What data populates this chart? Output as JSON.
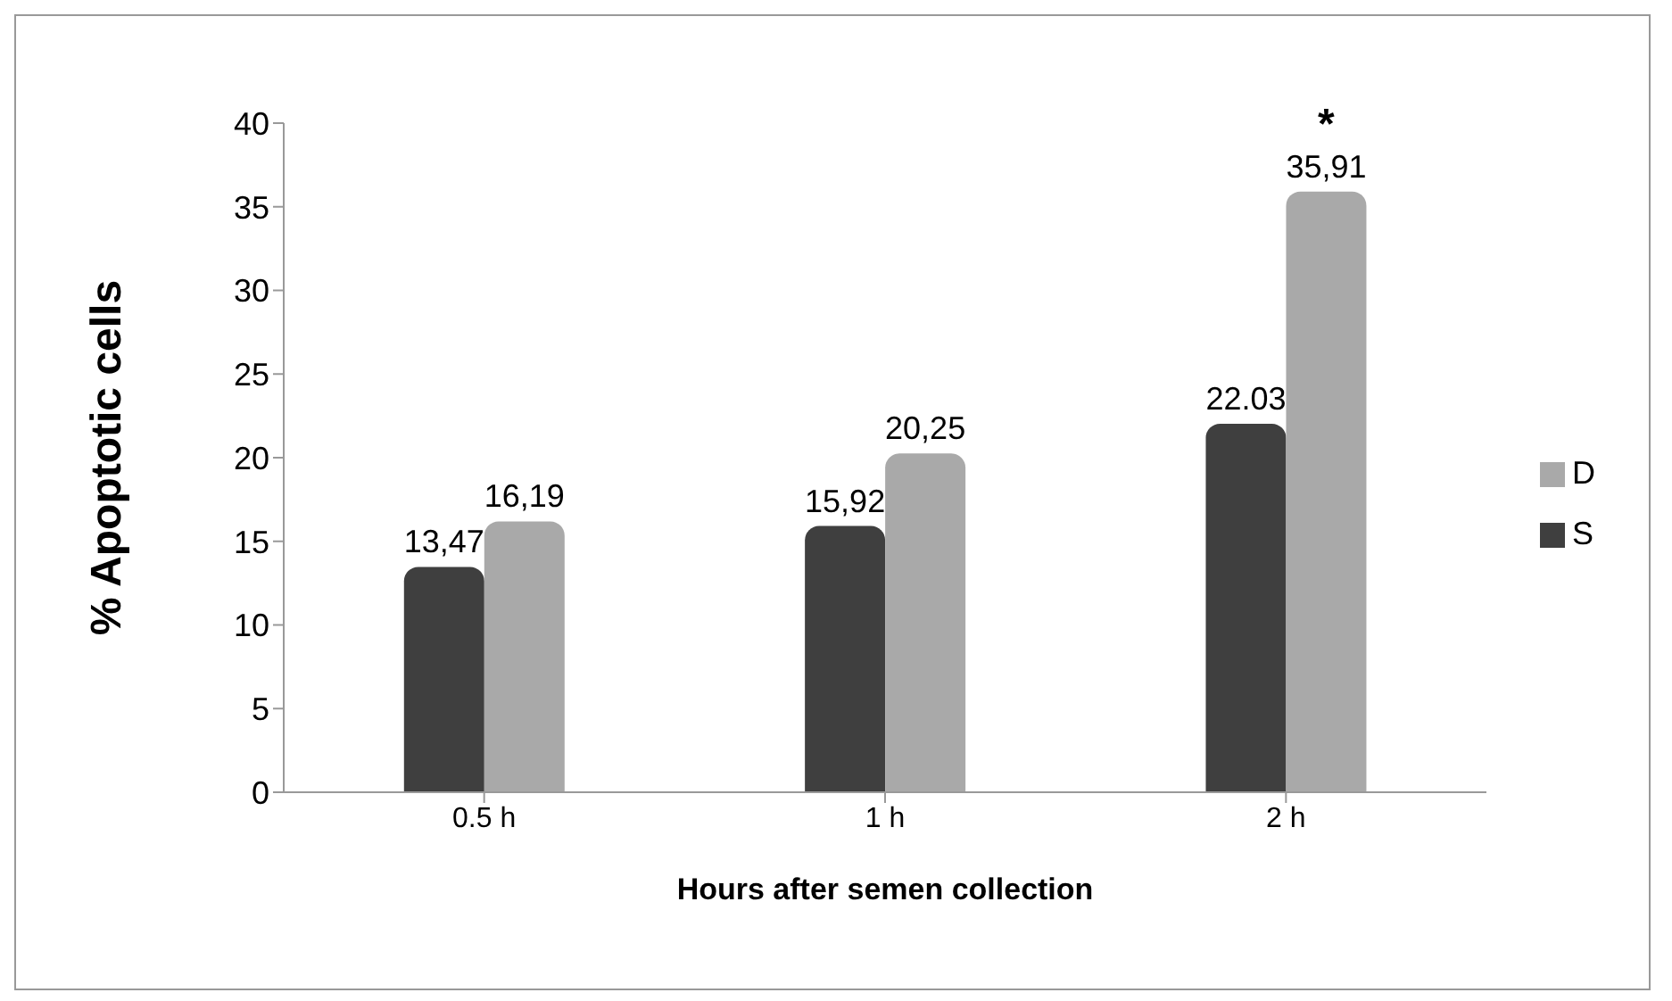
{
  "chart_data": {
    "type": "bar",
    "xlabel": "Hours after semen collection",
    "ylabel": "% Apoptotic cells",
    "categories": [
      "0.5 h",
      "1 h",
      "2 h"
    ],
    "series": [
      {
        "name": "S",
        "color": "#3f3f3f",
        "values": [
          13.47,
          15.92,
          22.03
        ],
        "value_labels": [
          "13,47",
          "15,92",
          "22.03"
        ]
      },
      {
        "name": "D",
        "color": "#a9a9a9",
        "values": [
          16.19,
          20.25,
          35.91
        ],
        "value_labels": [
          "16,19",
          "20,25",
          "35,91"
        ]
      }
    ],
    "ylim": [
      0,
      40
    ],
    "yticks": [
      0,
      5,
      10,
      15,
      20,
      25,
      30,
      35,
      40
    ],
    "grid": false,
    "legend": "right",
    "annotations": [
      {
        "text": "*",
        "x": "2 h",
        "y": 35.91
      }
    ]
  }
}
